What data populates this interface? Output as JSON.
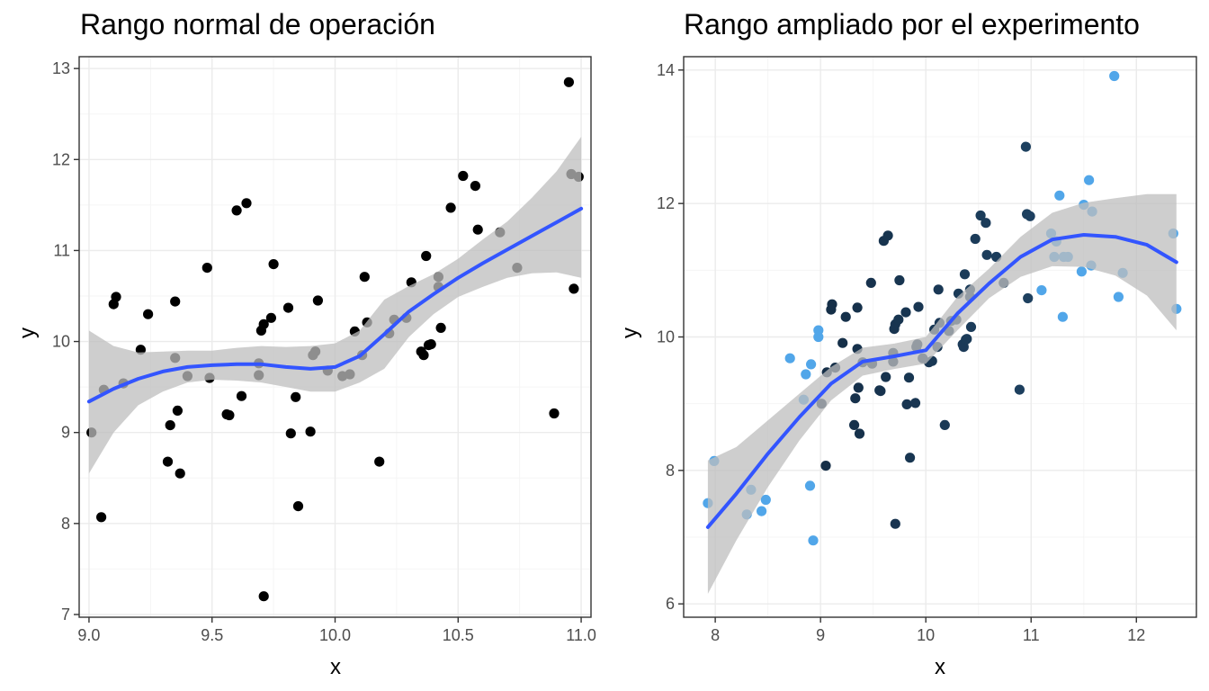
{
  "colors": {
    "panel_border": "#333333",
    "grid_major": "#ebebeb",
    "grid_minor": "#f5f5f5",
    "smooth_line": "#3355ff",
    "ribbon": "#bdbdbd",
    "point_dark": "#000000",
    "point_shade_low": "#132b43",
    "point_shade_high": "#56b1f7"
  },
  "chart_data": [
    {
      "type": "scatter",
      "title": "Rango normal de operación",
      "xlabel": "x",
      "ylabel": "y",
      "xlim": [
        8.96,
        11.04
      ],
      "ylim": [
        6.97,
        13.13
      ],
      "xticks": [
        9.0,
        9.5,
        10.0,
        10.5,
        11.0
      ],
      "xtick_labels": [
        "9.0",
        "9.5",
        "10.0",
        "10.5",
        "11.0"
      ],
      "yticks": [
        7,
        8,
        9,
        10,
        11,
        12,
        13
      ],
      "ytick_labels": [
        "7",
        "8",
        "9",
        "10",
        "11",
        "12",
        "13"
      ],
      "grid": true,
      "legend": "none",
      "points": [
        [
          9.01,
          9.0
        ],
        [
          9.05,
          8.07
        ],
        [
          9.06,
          9.47
        ],
        [
          9.1,
          10.41
        ],
        [
          9.11,
          10.49
        ],
        [
          9.14,
          9.54
        ],
        [
          9.21,
          9.91
        ],
        [
          9.24,
          10.3
        ],
        [
          9.32,
          8.68
        ],
        [
          9.33,
          9.08
        ],
        [
          9.35,
          10.44
        ],
        [
          9.35,
          9.82
        ],
        [
          9.36,
          9.24
        ],
        [
          9.37,
          8.55
        ],
        [
          9.4,
          9.62
        ],
        [
          9.48,
          10.81
        ],
        [
          9.49,
          9.6
        ],
        [
          9.56,
          9.2
        ],
        [
          9.57,
          9.19
        ],
        [
          9.6,
          11.44
        ],
        [
          9.62,
          9.4
        ],
        [
          9.64,
          11.52
        ],
        [
          9.69,
          9.76
        ],
        [
          9.69,
          9.63
        ],
        [
          9.7,
          10.12
        ],
        [
          9.71,
          10.19
        ],
        [
          9.71,
          7.2
        ],
        [
          9.74,
          10.26
        ],
        [
          9.75,
          10.85
        ],
        [
          9.81,
          10.37
        ],
        [
          9.82,
          8.99
        ],
        [
          9.84,
          9.39
        ],
        [
          9.85,
          8.19
        ],
        [
          9.9,
          9.01
        ],
        [
          9.91,
          9.85
        ],
        [
          9.92,
          9.89
        ],
        [
          9.93,
          10.45
        ],
        [
          9.97,
          9.68
        ],
        [
          10.03,
          9.62
        ],
        [
          10.06,
          9.64
        ],
        [
          10.08,
          10.11
        ],
        [
          10.11,
          9.85
        ],
        [
          10.12,
          10.71
        ],
        [
          10.13,
          10.21
        ],
        [
          10.18,
          8.68
        ],
        [
          10.22,
          10.09
        ],
        [
          10.24,
          10.24
        ],
        [
          10.29,
          10.26
        ],
        [
          10.31,
          10.65
        ],
        [
          10.35,
          9.89
        ],
        [
          10.36,
          9.85
        ],
        [
          10.37,
          10.94
        ],
        [
          10.38,
          9.96
        ],
        [
          10.39,
          9.97
        ],
        [
          10.42,
          10.6
        ],
        [
          10.42,
          10.71
        ],
        [
          10.43,
          10.15
        ],
        [
          10.47,
          11.47
        ],
        [
          10.52,
          11.82
        ],
        [
          10.57,
          11.71
        ],
        [
          10.58,
          11.23
        ],
        [
          10.67,
          11.2
        ],
        [
          10.74,
          10.81
        ],
        [
          10.89,
          9.21
        ],
        [
          10.95,
          12.85
        ],
        [
          10.96,
          11.84
        ],
        [
          10.97,
          10.58
        ],
        [
          10.99,
          11.81
        ]
      ],
      "smooth": {
        "x": [
          9.0,
          9.1,
          9.2,
          9.3,
          9.4,
          9.5,
          9.6,
          9.7,
          9.8,
          9.9,
          10.0,
          10.1,
          10.2,
          10.3,
          10.4,
          10.5,
          10.6,
          10.7,
          10.8,
          10.9,
          11.0
        ],
        "y": [
          9.34,
          9.48,
          9.59,
          9.67,
          9.72,
          9.74,
          9.75,
          9.75,
          9.72,
          9.7,
          9.72,
          9.84,
          10.08,
          10.33,
          10.52,
          10.7,
          10.86,
          11.01,
          11.16,
          11.31,
          11.46
        ],
        "lower": [
          8.55,
          9.0,
          9.3,
          9.45,
          9.55,
          9.58,
          9.57,
          9.55,
          9.5,
          9.45,
          9.45,
          9.55,
          9.7,
          10.05,
          10.3,
          10.49,
          10.6,
          10.7,
          10.75,
          10.76,
          10.7
        ],
        "upper": [
          10.12,
          9.95,
          9.88,
          9.89,
          9.9,
          9.9,
          9.93,
          9.95,
          9.94,
          9.95,
          9.98,
          10.12,
          10.46,
          10.61,
          10.74,
          10.91,
          11.12,
          11.32,
          11.58,
          11.87,
          12.25
        ]
      }
    },
    {
      "type": "scatter",
      "title": "Rango ampliado por el experimento",
      "xlabel": "x",
      "ylabel": "y",
      "xlim": [
        7.7,
        12.57
      ],
      "ylim": [
        5.8,
        14.2
      ],
      "xticks": [
        8,
        9,
        10,
        11,
        12
      ],
      "xtick_labels": [
        "8",
        "9",
        "10",
        "11",
        "12"
      ],
      "yticks": [
        6,
        8,
        10,
        12,
        14
      ],
      "ytick_labels": [
        "6",
        "8",
        "10",
        "12",
        "14"
      ],
      "grid": true,
      "legend": "none",
      "points": [
        [
          7.93,
          7.51
        ],
        [
          7.99,
          8.14
        ],
        [
          8.3,
          7.34
        ],
        [
          8.34,
          7.71
        ],
        [
          8.44,
          7.39
        ],
        [
          8.48,
          7.56
        ],
        [
          8.71,
          9.68
        ],
        [
          8.84,
          9.06
        ],
        [
          8.86,
          9.44
        ],
        [
          8.9,
          7.77
        ],
        [
          8.91,
          9.59
        ],
        [
          8.93,
          6.95
        ],
        [
          8.98,
          10.0
        ],
        [
          8.98,
          10.1
        ],
        [
          9.01,
          9.0
        ],
        [
          9.05,
          8.07
        ],
        [
          9.06,
          9.47
        ],
        [
          9.1,
          10.41
        ],
        [
          9.11,
          10.49
        ],
        [
          9.14,
          9.54
        ],
        [
          9.21,
          9.91
        ],
        [
          9.24,
          10.3
        ],
        [
          9.32,
          8.68
        ],
        [
          9.33,
          9.08
        ],
        [
          9.35,
          10.44
        ],
        [
          9.35,
          9.82
        ],
        [
          9.36,
          9.24
        ],
        [
          9.37,
          8.55
        ],
        [
          9.4,
          9.62
        ],
        [
          9.48,
          10.81
        ],
        [
          9.49,
          9.6
        ],
        [
          9.56,
          9.2
        ],
        [
          9.57,
          9.19
        ],
        [
          9.6,
          11.44
        ],
        [
          9.62,
          9.4
        ],
        [
          9.64,
          11.52
        ],
        [
          9.69,
          9.76
        ],
        [
          9.69,
          9.63
        ],
        [
          9.7,
          10.12
        ],
        [
          9.71,
          10.19
        ],
        [
          9.71,
          7.2
        ],
        [
          9.74,
          10.26
        ],
        [
          9.75,
          10.85
        ],
        [
          9.81,
          10.37
        ],
        [
          9.82,
          8.99
        ],
        [
          9.84,
          9.39
        ],
        [
          9.85,
          8.19
        ],
        [
          9.9,
          9.01
        ],
        [
          9.91,
          9.85
        ],
        [
          9.92,
          9.89
        ],
        [
          9.93,
          10.45
        ],
        [
          9.97,
          9.68
        ],
        [
          10.03,
          9.62
        ],
        [
          10.06,
          9.64
        ],
        [
          10.08,
          10.11
        ],
        [
          10.11,
          9.85
        ],
        [
          10.12,
          10.71
        ],
        [
          10.13,
          10.21
        ],
        [
          10.18,
          8.68
        ],
        [
          10.22,
          10.09
        ],
        [
          10.24,
          10.24
        ],
        [
          10.29,
          10.26
        ],
        [
          10.31,
          10.65
        ],
        [
          10.35,
          9.89
        ],
        [
          10.36,
          9.85
        ],
        [
          10.37,
          10.94
        ],
        [
          10.38,
          9.96
        ],
        [
          10.39,
          9.97
        ],
        [
          10.42,
          10.6
        ],
        [
          10.42,
          10.71
        ],
        [
          10.43,
          10.15
        ],
        [
          10.47,
          11.47
        ],
        [
          10.52,
          11.82
        ],
        [
          10.57,
          11.71
        ],
        [
          10.58,
          11.23
        ],
        [
          10.67,
          11.2
        ],
        [
          10.74,
          10.81
        ],
        [
          10.89,
          9.21
        ],
        [
          10.95,
          12.85
        ],
        [
          10.96,
          11.84
        ],
        [
          10.97,
          10.58
        ],
        [
          10.99,
          11.81
        ],
        [
          11.1,
          10.7
        ],
        [
          11.19,
          11.55
        ],
        [
          11.22,
          11.2
        ],
        [
          11.24,
          11.43
        ],
        [
          11.27,
          12.12
        ],
        [
          11.3,
          10.3
        ],
        [
          11.31,
          11.2
        ],
        [
          11.35,
          11.2
        ],
        [
          11.48,
          10.98
        ],
        [
          11.5,
          11.98
        ],
        [
          11.55,
          12.35
        ],
        [
          11.57,
          11.07
        ],
        [
          11.58,
          11.88
        ],
        [
          11.79,
          13.91
        ],
        [
          11.83,
          10.6
        ],
        [
          11.87,
          10.96
        ],
        [
          12.35,
          11.55
        ],
        [
          12.38,
          10.42
        ]
      ],
      "smooth": {
        "x": [
          7.93,
          8.2,
          8.5,
          8.8,
          9.1,
          9.4,
          9.7,
          10.0,
          10.3,
          10.6,
          10.9,
          11.2,
          11.5,
          11.8,
          12.1,
          12.38
        ],
        "y": [
          7.15,
          7.65,
          8.25,
          8.8,
          9.3,
          9.63,
          9.71,
          9.8,
          10.35,
          10.8,
          11.2,
          11.46,
          11.53,
          11.5,
          11.38,
          11.12
        ],
        "lower": [
          6.15,
          6.95,
          7.75,
          8.45,
          9.05,
          9.42,
          9.52,
          9.6,
          10.1,
          10.58,
          10.9,
          11.06,
          11.05,
          10.92,
          10.62,
          10.1
        ],
        "upper": [
          8.15,
          8.35,
          8.75,
          9.15,
          9.55,
          9.84,
          9.9,
          10.0,
          10.6,
          11.02,
          11.5,
          11.86,
          12.01,
          12.08,
          12.14,
          12.14
        ]
      }
    }
  ]
}
